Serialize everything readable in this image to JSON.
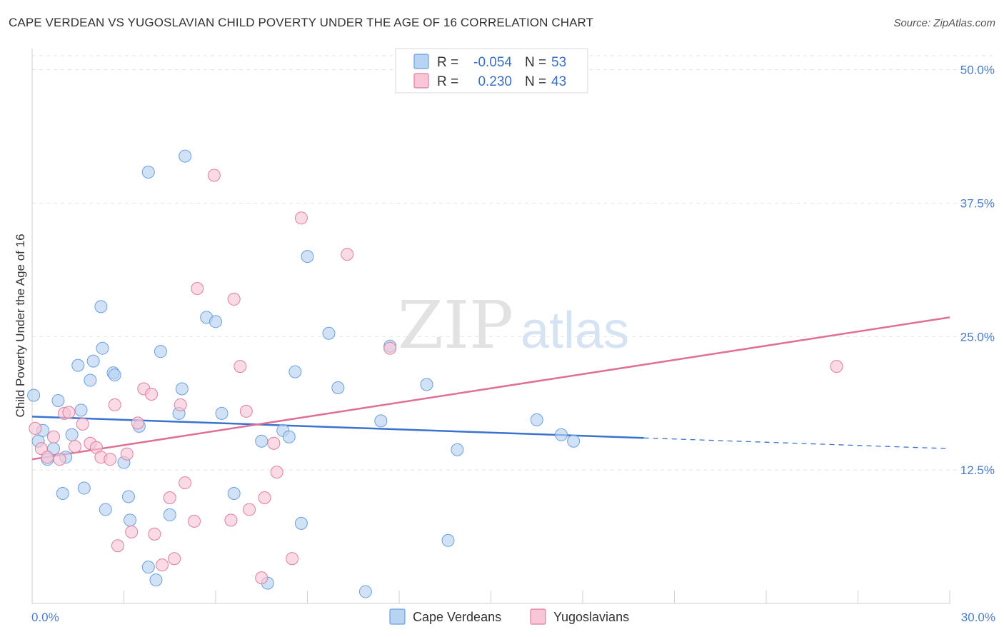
{
  "title": "CAPE VERDEAN VS YUGOSLAVIAN CHILD POVERTY UNDER THE AGE OF 16 CORRELATION CHART",
  "source": "Source: ZipAtlas.com",
  "watermark": {
    "zip": "ZIP",
    "atlas": "atlas"
  },
  "legend": {
    "rows": [
      {
        "r_label": "R =",
        "r_value": "-0.054",
        "n_label": "N =",
        "n_value": "53",
        "color": "#6aa0e0",
        "fill": "#b9d3f3"
      },
      {
        "r_label": "R =",
        "r_value": "0.230",
        "n_label": "N =",
        "n_value": "43",
        "color": "#e07ea0",
        "fill": "#f8c6d6"
      }
    ]
  },
  "bottom_legend": [
    "Cape Verdeans",
    "Yugoslavians"
  ],
  "chart_data": {
    "type": "scatter",
    "title": "CAPE VERDEAN VS YUGOSLAVIAN CHILD POVERTY UNDER THE AGE OF 16 CORRELATION CHART",
    "xlabel": "",
    "ylabel": "Child Poverty Under the Age of 16",
    "xlim": [
      0,
      30
    ],
    "ylim": [
      0,
      50
    ],
    "x_tick_labels": [
      "0.0%",
      "30.0%"
    ],
    "y_tick_labels": [
      "12.5%",
      "25.0%",
      "37.5%",
      "50.0%"
    ],
    "y_ticks": [
      12.5,
      25.0,
      37.5,
      50.0
    ],
    "grid": true,
    "legend_position": "top-center",
    "series": [
      {
        "name": "Cape Verdeans",
        "color": "#6aa0e0",
        "fill": "#b9d3f3",
        "trend": {
          "x": [
            0,
            20,
            30
          ],
          "y": [
            17.5,
            15.5,
            14.5
          ],
          "solid_until": 20
        },
        "points": [
          [
            0.05,
            19.5
          ],
          [
            0.2,
            15.2
          ],
          [
            0.35,
            16.2
          ],
          [
            0.5,
            13.5
          ],
          [
            0.7,
            14.5
          ],
          [
            0.85,
            19.0
          ],
          [
            1.0,
            10.3
          ],
          [
            1.1,
            13.7
          ],
          [
            1.3,
            15.8
          ],
          [
            1.5,
            22.3
          ],
          [
            1.6,
            18.1
          ],
          [
            1.7,
            10.8
          ],
          [
            1.9,
            20.9
          ],
          [
            2.0,
            22.7
          ],
          [
            2.25,
            27.8
          ],
          [
            2.3,
            23.9
          ],
          [
            2.4,
            8.8
          ],
          [
            2.65,
            21.6
          ],
          [
            2.7,
            21.4
          ],
          [
            3.0,
            13.2
          ],
          [
            3.15,
            10.0
          ],
          [
            3.2,
            7.8
          ],
          [
            3.5,
            16.6
          ],
          [
            3.8,
            3.4
          ],
          [
            3.8,
            40.4
          ],
          [
            4.05,
            2.2
          ],
          [
            4.2,
            23.6
          ],
          [
            4.5,
            8.3
          ],
          [
            4.8,
            17.8
          ],
          [
            4.9,
            20.1
          ],
          [
            5.0,
            41.9
          ],
          [
            5.7,
            26.8
          ],
          [
            6.0,
            26.4
          ],
          [
            6.2,
            17.8
          ],
          [
            6.6,
            10.3
          ],
          [
            7.5,
            15.2
          ],
          [
            7.7,
            1.9
          ],
          [
            8.2,
            16.2
          ],
          [
            8.4,
            15.6
          ],
          [
            8.6,
            21.7
          ],
          [
            8.8,
            7.5
          ],
          [
            9.0,
            32.5
          ],
          [
            9.7,
            25.3
          ],
          [
            10.0,
            20.2
          ],
          [
            10.9,
            1.1
          ],
          [
            11.4,
            17.1
          ],
          [
            11.7,
            24.1
          ],
          [
            12.9,
            20.5
          ],
          [
            13.6,
            5.9
          ],
          [
            13.9,
            14.4
          ],
          [
            16.5,
            17.2
          ],
          [
            17.3,
            15.8
          ],
          [
            17.7,
            15.2
          ]
        ]
      },
      {
        "name": "Yugoslavians",
        "color": "#e07ea0",
        "fill": "#f8c6d6",
        "trend": {
          "x": [
            0,
            30
          ],
          "y": [
            13.5,
            26.8
          ]
        },
        "points": [
          [
            0.1,
            16.4
          ],
          [
            0.3,
            14.5
          ],
          [
            0.5,
            13.7
          ],
          [
            0.7,
            15.6
          ],
          [
            0.9,
            13.5
          ],
          [
            1.05,
            17.8
          ],
          [
            1.2,
            17.9
          ],
          [
            1.4,
            14.7
          ],
          [
            1.65,
            16.8
          ],
          [
            1.9,
            15.0
          ],
          [
            2.1,
            14.6
          ],
          [
            2.25,
            13.7
          ],
          [
            2.55,
            13.5
          ],
          [
            2.7,
            18.6
          ],
          [
            2.8,
            5.4
          ],
          [
            3.1,
            14.0
          ],
          [
            3.25,
            6.7
          ],
          [
            3.45,
            16.9
          ],
          [
            3.65,
            20.1
          ],
          [
            3.9,
            19.6
          ],
          [
            4.0,
            6.5
          ],
          [
            4.25,
            3.6
          ],
          [
            4.5,
            9.9
          ],
          [
            4.65,
            4.2
          ],
          [
            4.85,
            18.6
          ],
          [
            5.0,
            11.3
          ],
          [
            5.3,
            7.7
          ],
          [
            5.4,
            29.5
          ],
          [
            5.95,
            40.1
          ],
          [
            6.5,
            7.8
          ],
          [
            6.6,
            28.5
          ],
          [
            6.8,
            22.2
          ],
          [
            7.0,
            18.0
          ],
          [
            7.1,
            8.8
          ],
          [
            7.5,
            2.4
          ],
          [
            7.6,
            9.9
          ],
          [
            7.9,
            15.0
          ],
          [
            8.0,
            12.3
          ],
          [
            8.5,
            4.2
          ],
          [
            8.8,
            36.1
          ],
          [
            10.3,
            32.7
          ],
          [
            11.7,
            23.9
          ],
          [
            26.3,
            22.2
          ]
        ]
      }
    ]
  }
}
